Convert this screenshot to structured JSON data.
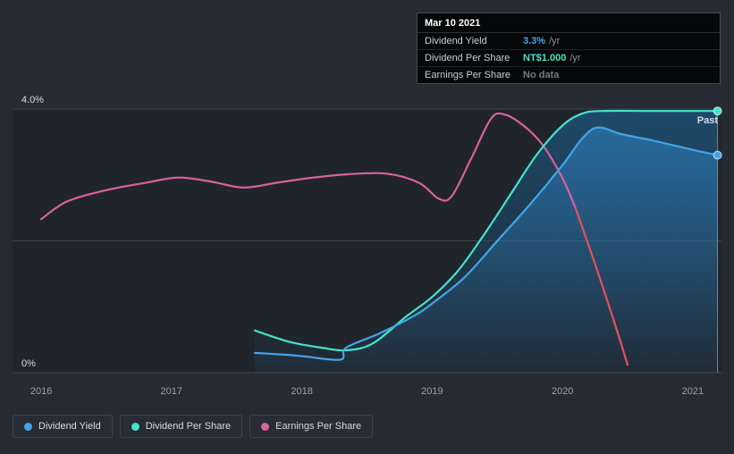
{
  "tooltip": {
    "date": "Mar 10 2021",
    "rows": [
      {
        "label": "Dividend Yield",
        "value": "3.3%",
        "suffix": "/yr",
        "color": "#4aa7e0"
      },
      {
        "label": "Dividend Per Share",
        "value": "NT$1.000",
        "suffix": "/yr",
        "color": "#45e3c9"
      },
      {
        "label": "Earnings Per Share",
        "value": "No data",
        "suffix": "",
        "color": "#767b83"
      }
    ]
  },
  "chart_data": {
    "type": "line",
    "title": "",
    "annotations": {
      "past": "Past"
    },
    "axis": {
      "x_range": [
        2015.78,
        2021.22
      ],
      "y_range": [
        0,
        4
      ],
      "x_ticks": [
        2016,
        2017,
        2018,
        2019,
        2020,
        2021
      ],
      "y_grid": [
        0,
        2,
        4
      ],
      "y_tick_labels": [
        {
          "value": 4,
          "label": "4.0%"
        },
        {
          "value": 0,
          "label": "0%"
        }
      ]
    },
    "now_line": {
      "x": 2021.19,
      "color": "#7b8492"
    },
    "series": [
      {
        "name": "Dividend Yield",
        "color": "#42a5e6",
        "unit": "%",
        "area": true,
        "area_gradient": "gradBlue",
        "end_dot": true,
        "points": [
          [
            2017.64,
            0.3
          ],
          [
            2017.9,
            0.27
          ],
          [
            2018.05,
            0.24
          ],
          [
            2018.3,
            0.2
          ],
          [
            2018.34,
            0.38
          ],
          [
            2018.6,
            0.6
          ],
          [
            2018.85,
            0.85
          ],
          [
            2019.0,
            1.05
          ],
          [
            2019.25,
            1.45
          ],
          [
            2019.5,
            2.0
          ],
          [
            2019.75,
            2.55
          ],
          [
            2020.0,
            3.15
          ],
          [
            2020.15,
            3.55
          ],
          [
            2020.27,
            3.72
          ],
          [
            2020.45,
            3.62
          ],
          [
            2020.7,
            3.52
          ],
          [
            2021.0,
            3.38
          ],
          [
            2021.19,
            3.3
          ]
        ]
      },
      {
        "name": "Dividend Per Share",
        "color": "#45e3c9",
        "unit": "plot-units (current value NT$1.000/yr)",
        "area": true,
        "area_gradient": "gradTeal",
        "end_dot": true,
        "points": [
          [
            2017.64,
            0.64
          ],
          [
            2017.9,
            0.47
          ],
          [
            2018.15,
            0.38
          ],
          [
            2018.35,
            0.34
          ],
          [
            2018.55,
            0.45
          ],
          [
            2018.8,
            0.85
          ],
          [
            2019.0,
            1.15
          ],
          [
            2019.2,
            1.55
          ],
          [
            2019.4,
            2.1
          ],
          [
            2019.6,
            2.7
          ],
          [
            2019.8,
            3.3
          ],
          [
            2020.0,
            3.75
          ],
          [
            2020.15,
            3.93
          ],
          [
            2020.3,
            3.97
          ],
          [
            2020.7,
            3.97
          ],
          [
            2021.19,
            3.97
          ]
        ]
      },
      {
        "name": "Earnings Per Share",
        "color": "#d961a0",
        "unit": "plot-units (current: No data)",
        "segments": [
          {
            "color": "#d961a0",
            "points": [
              [
                2016.0,
                2.33
              ],
              [
                2016.2,
                2.6
              ],
              [
                2016.5,
                2.77
              ],
              [
                2016.8,
                2.88
              ],
              [
                2017.05,
                2.96
              ],
              [
                2017.3,
                2.9
              ],
              [
                2017.55,
                2.81
              ],
              [
                2017.8,
                2.88
              ],
              [
                2018.05,
                2.95
              ],
              [
                2018.35,
                3.01
              ],
              [
                2018.65,
                3.02
              ],
              [
                2018.9,
                2.88
              ],
              [
                2019.05,
                2.64
              ],
              [
                2019.15,
                2.68
              ],
              [
                2019.3,
                3.25
              ],
              [
                2019.45,
                3.85
              ],
              [
                2019.55,
                3.92
              ],
              [
                2019.7,
                3.75
              ],
              [
                2019.85,
                3.45
              ],
              [
                2020.0,
                2.95
              ],
              [
                2020.1,
                2.5
              ]
            ]
          },
          {
            "color": "#e84f58",
            "points": [
              [
                2020.1,
                2.5
              ],
              [
                2020.25,
                1.65
              ],
              [
                2020.4,
                0.75
              ],
              [
                2020.5,
                0.12
              ]
            ]
          }
        ]
      }
    ]
  }
}
